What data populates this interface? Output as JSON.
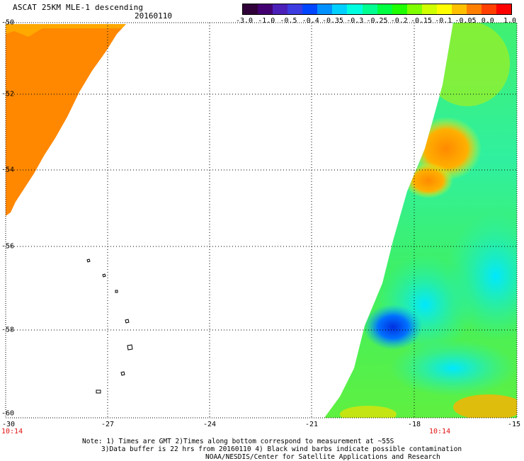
{
  "header": {
    "title": "ASCAT 25KM MLE-1 descending",
    "date": "20160110"
  },
  "colorbar": {
    "tick_labels": [
      "-3.0",
      "-1.0",
      "-0.5",
      "-0.4",
      "-0.35",
      "-0.3",
      "-0.25",
      "-0.2",
      "-0.15",
      "-0.1",
      "-0.05",
      "0.0",
      "1.0"
    ],
    "colors": [
      "#300038",
      "#420070",
      "#4a20b8",
      "#3c3ce0",
      "#0046ff",
      "#0090ff",
      "#00d0ff",
      "#00ffe0",
      "#00ff90",
      "#00ff40",
      "#20ff00",
      "#80ff00",
      "#d0ff00",
      "#ffff00",
      "#ffc000",
      "#ff8000",
      "#ff4000",
      "#ff0000"
    ]
  },
  "axes": {
    "y_labels": [
      "-50",
      "-52",
      "-54",
      "-56",
      "-58",
      "-60"
    ],
    "x_labels": [
      "-30",
      "-27",
      "-24",
      "-21",
      "-18",
      "-15"
    ],
    "lon_range": [
      -30,
      -15
    ],
    "lat_range": [
      -60,
      -50
    ]
  },
  "time_labels": [
    "10:14",
    "10:14"
  ],
  "notes": [
    "Note: 1) Times are GMT 2)Times along bottom correspond to measurement at ~55S",
    "3)Data buffer is 22 hrs from 20160110 4) Black wind barbs indicate possible contamination",
    "NOAA/NESDIS/Center for Satellite Applications and Research"
  ]
}
